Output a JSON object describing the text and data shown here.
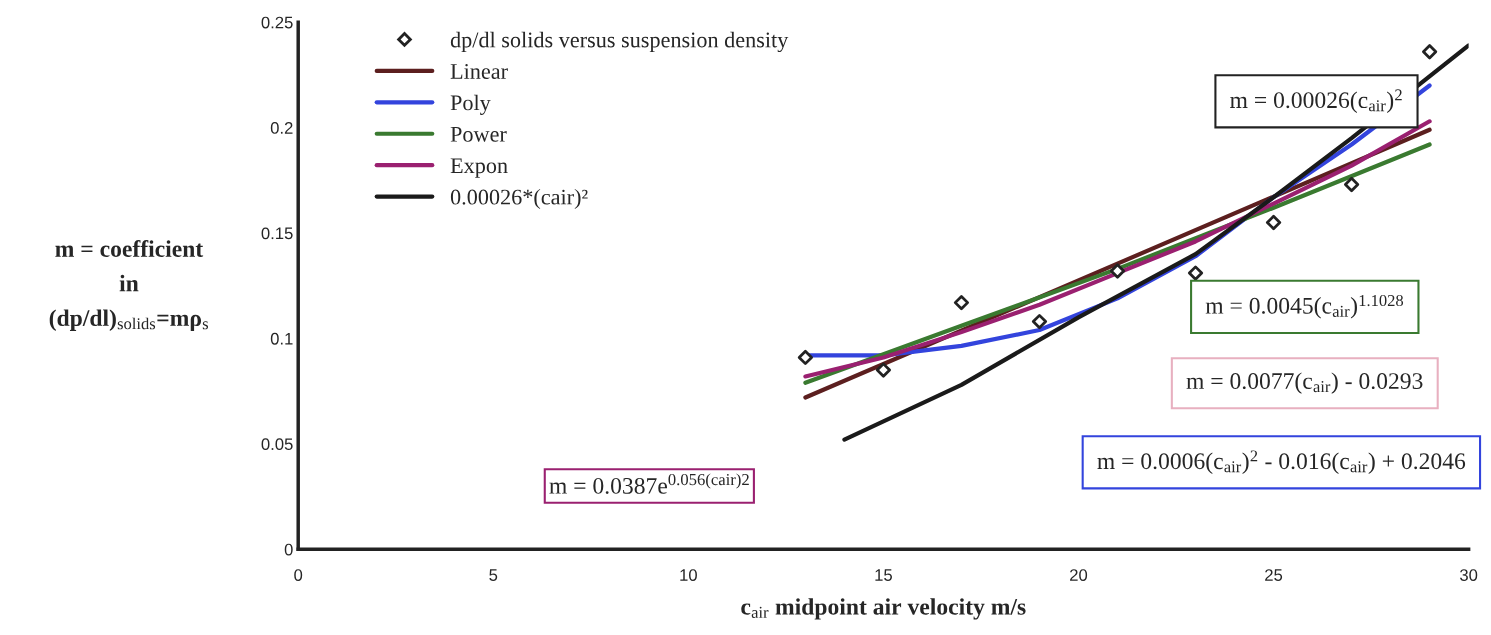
{
  "chart_data": {
    "type": "line",
    "xlabel": "c$_{air}$ midpoint air velocity m/s",
    "ylabel": "m = coefficient\nin\n(dp/dl)$_{solids}$=mρ$_{s}$",
    "xlim": [
      0,
      30
    ],
    "xticks": [
      0,
      5,
      10,
      15,
      20,
      25,
      30
    ],
    "ylim": [
      0,
      0.25
    ],
    "yticks": [
      0,
      0.05,
      0.1,
      0.15,
      0.2,
      0.25
    ],
    "grid": false,
    "legend": "top left",
    "line_style": "solid",
    "series": [
      {
        "name": "dp/dl solids versus suspension density",
        "type": "scatter",
        "marker": "diamond",
        "color": "#222222",
        "x": [
          13,
          15,
          17,
          19,
          21,
          23,
          25,
          27,
          29
        ],
        "values": [
          0.091,
          0.085,
          0.117,
          0.108,
          0.132,
          0.131,
          0.155,
          0.173,
          0.236
        ]
      },
      {
        "name": "Linear",
        "color": "#5c1f1f",
        "x": [
          13,
          29
        ],
        "values": [
          0.072,
          0.199
        ]
      },
      {
        "name": "Poly",
        "color": "#3344dd",
        "x": [
          13,
          15,
          17,
          19,
          21,
          23,
          25,
          27,
          29
        ],
        "values": [
          0.092,
          0.092,
          0.0965,
          0.104,
          0.119,
          0.139,
          0.167,
          0.192,
          0.22
        ]
      },
      {
        "name": "Power",
        "color": "#3a7a30",
        "x": [
          13,
          17,
          21,
          25,
          29
        ],
        "values": [
          0.079,
          0.106,
          0.133,
          0.162,
          0.192
        ]
      },
      {
        "name": "Expon",
        "color": "#9a2070",
        "x": [
          13,
          15,
          17,
          19,
          21,
          23,
          25,
          27,
          29
        ],
        "values": [
          0.082,
          0.091,
          0.103,
          0.116,
          0.131,
          0.146,
          0.164,
          0.182,
          0.203
        ]
      },
      {
        "name": "0.00026*(cair)²",
        "color": "#1a1a1a",
        "x": [
          14,
          17,
          20,
          23,
          25,
          27,
          30
        ],
        "values": [
          0.052,
          0.078,
          0.11,
          0.14,
          0.167,
          0.195,
          0.239
        ]
      }
    ],
    "annotations": [
      "m = 0.00026(c$_{air}$)$^{2}$",
      "m = 0.0045(c$_{air}$)$^{1.1028}$",
      "m = 0.0077(c$_{air}$) - 0.0293",
      "m = 0.0006(c$_{air}$)$^{2}$ - 0.016(c$_{air}$) + 0.2046",
      "m = 0.0387e$^{0.056(cair)2}$"
    ]
  }
}
